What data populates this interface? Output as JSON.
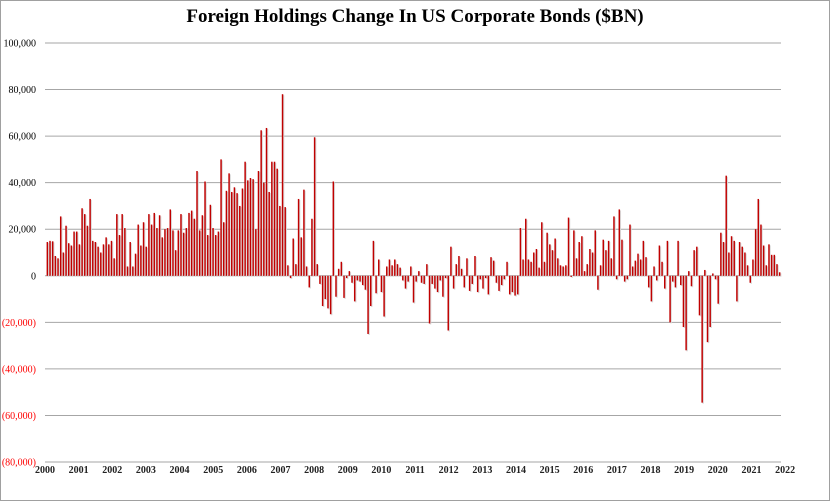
{
  "chart_data": {
    "type": "bar",
    "title": "Foreign Holdings Change In US Corporate Bonds ($BN)",
    "xlabel": "",
    "ylabel": "",
    "ylim": [
      -80000,
      100000
    ],
    "grid": true,
    "legend": "none",
    "bar_color": "#c00000",
    "negative_label_color": "#ff0000",
    "yticks": [
      {
        "value": 100000,
        "label": "100,000"
      },
      {
        "value": 80000,
        "label": "80,000"
      },
      {
        "value": 60000,
        "label": "60,000"
      },
      {
        "value": 40000,
        "label": "40,000"
      },
      {
        "value": 20000,
        "label": "20,000"
      },
      {
        "value": 0,
        "label": "0"
      },
      {
        "value": -20000,
        "label": "(20,000)"
      },
      {
        "value": -40000,
        "label": "(40,000)"
      },
      {
        "value": -60000,
        "label": "(60,000)"
      },
      {
        "value": -80000,
        "label": "(80,000)"
      }
    ],
    "xticks": [
      "2000",
      "2001",
      "2002",
      "2003",
      "2004",
      "2005",
      "2006",
      "2007",
      "2008",
      "2009",
      "2010",
      "2011",
      "2012",
      "2013",
      "2014",
      "2015",
      "2016",
      "2017",
      "2018",
      "2019",
      "2020",
      "2021",
      "2022"
    ],
    "frequency": "monthly",
    "start": "2000-01",
    "values": [
      14500,
      15000,
      14800,
      8500,
      7500,
      25500,
      10000,
      21500,
      14000,
      13000,
      19000,
      19000,
      13500,
      29000,
      26500,
      21500,
      33000,
      15000,
      14500,
      12500,
      10000,
      13500,
      16500,
      13500,
      15000,
      7500,
      26500,
      17500,
      26500,
      20500,
      4000,
      14500,
      4000,
      9500,
      22000,
      13000,
      23000,
      12500,
      26500,
      22000,
      27000,
      20500,
      26000,
      16500,
      20000,
      20500,
      28500,
      19500,
      11000,
      19500,
      26500,
      18500,
      20500,
      27000,
      28000,
      24500,
      45000,
      19500,
      26000,
      40500,
      17500,
      30500,
      20500,
      17500,
      19000,
      50000,
      23000,
      36500,
      44000,
      36000,
      38000,
      35500,
      30000,
      37500,
      49000,
      41000,
      42000,
      41500,
      20000,
      45000,
      62500,
      40000,
      63500,
      36000,
      49000,
      49000,
      46000,
      30000,
      78000,
      29500,
      4500,
      -1000,
      16000,
      5000,
      33000,
      16500,
      37000,
      4000,
      -5000,
      24500,
      59500,
      5000,
      -3500,
      -13000,
      -10000,
      -14000,
      -16500,
      40500,
      -9000,
      3000,
      6000,
      -9500,
      -1000,
      2000,
      -3000,
      -11000,
      -2000,
      -2500,
      -4000,
      -6000,
      -25000,
      -13000,
      15000,
      -7500,
      7000,
      -7000,
      -17500,
      4000,
      7000,
      4500,
      7000,
      5000,
      3500,
      -2000,
      -5500,
      -2500,
      4000,
      -11500,
      -2500,
      2000,
      -3000,
      -3500,
      5000,
      -20500,
      -3500,
      -5500,
      -7000,
      -2000,
      -9000,
      -1000,
      -23500,
      12500,
      -5500,
      5000,
      8500,
      3000,
      -5000,
      7500,
      -6500,
      -3500,
      8500,
      -7000,
      -1500,
      -5500,
      -1000,
      -8000,
      8000,
      6500,
      -3000,
      -6500,
      -4000,
      -1500,
      6000,
      -8000,
      -7000,
      -8500,
      -8000,
      20500,
      7000,
      24500,
      7000,
      6000,
      10000,
      11500,
      3500,
      23000,
      6000,
      18500,
      13500,
      11000,
      16000,
      7500,
      4500,
      4000,
      4500,
      25000,
      -500,
      19500,
      7500,
      14500,
      17000,
      2000,
      5000,
      11500,
      10000,
      19500,
      -6000,
      4500,
      15500,
      11000,
      15000,
      7500,
      25500,
      -1500,
      28500,
      15500,
      -2500,
      -1500,
      22000,
      4000,
      6500,
      9500,
      7000,
      15000,
      8000,
      -5000,
      -11000,
      4000,
      -2000,
      13000,
      6000,
      -5500,
      15000,
      -20000,
      -2500,
      -5000,
      15000,
      -4000,
      -22000,
      -32000,
      2000,
      -4500,
      11000,
      12500,
      -17000,
      -54500,
      2500,
      -28500,
      -22000,
      1000,
      -1500,
      -12000,
      18500,
      14500,
      43000,
      10000,
      17000,
      15000,
      -11000,
      14500,
      12500,
      10000,
      4500,
      -3000,
      7000,
      20000,
      33000,
      22000,
      13000,
      4500,
      13500,
      9000,
      9000,
      5000,
      1500
    ]
  }
}
